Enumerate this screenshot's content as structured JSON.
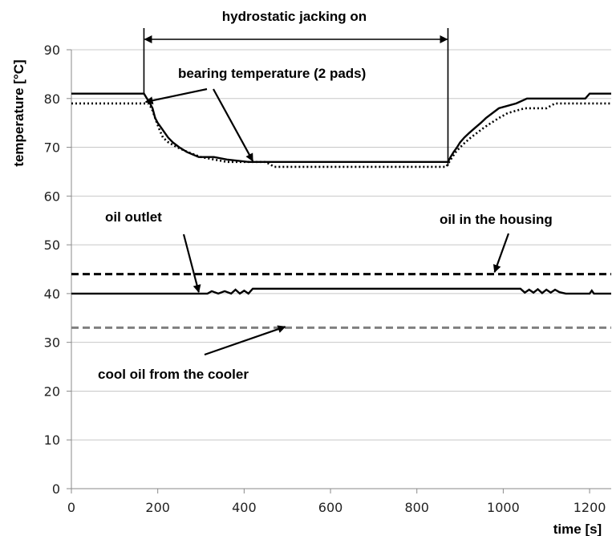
{
  "chart_data": {
    "type": "line",
    "title": "",
    "xlabel": "time [s]",
    "ylabel": "temperature [°C]",
    "xlim": [
      0,
      1250
    ],
    "ylim": [
      0,
      90
    ],
    "x_ticks": [
      0,
      200,
      400,
      600,
      800,
      1000,
      1200
    ],
    "y_ticks": [
      0,
      10,
      20,
      30,
      40,
      50,
      60,
      70,
      80,
      90
    ],
    "grid": "horizontal",
    "legend": "none",
    "series": [
      {
        "key": "bearing_pad_1",
        "style": "solid",
        "color": "#000000",
        "points": [
          [
            0,
            81
          ],
          [
            168,
            81
          ],
          [
            175,
            80
          ],
          [
            182,
            79
          ],
          [
            188,
            78
          ],
          [
            194,
            76
          ],
          [
            200,
            75
          ],
          [
            208,
            74
          ],
          [
            216,
            73
          ],
          [
            224,
            72
          ],
          [
            235,
            71
          ],
          [
            250,
            70
          ],
          [
            268,
            69
          ],
          [
            295,
            68
          ],
          [
            330,
            68
          ],
          [
            360,
            67.5
          ],
          [
            410,
            67
          ],
          [
            520,
            67
          ],
          [
            700,
            67
          ],
          [
            872,
            67
          ],
          [
            878,
            68
          ],
          [
            885,
            69
          ],
          [
            893,
            70
          ],
          [
            900,
            71
          ],
          [
            910,
            72
          ],
          [
            922,
            73
          ],
          [
            935,
            74
          ],
          [
            948,
            75
          ],
          [
            960,
            76
          ],
          [
            975,
            77
          ],
          [
            990,
            78
          ],
          [
            1030,
            79
          ],
          [
            1055,
            80
          ],
          [
            1190,
            80
          ],
          [
            1200,
            81
          ],
          [
            1250,
            81
          ]
        ]
      },
      {
        "key": "bearing_pad_2",
        "style": "dotted",
        "color": "#000000",
        "points": [
          [
            0,
            79
          ],
          [
            168,
            79
          ],
          [
            178,
            79
          ],
          [
            186,
            78
          ],
          [
            194,
            76
          ],
          [
            202,
            74
          ],
          [
            212,
            72
          ],
          [
            225,
            71
          ],
          [
            245,
            70
          ],
          [
            270,
            69
          ],
          [
            300,
            68
          ],
          [
            360,
            67
          ],
          [
            450,
            67
          ],
          [
            470,
            66
          ],
          [
            700,
            66
          ],
          [
            868,
            66
          ],
          [
            875,
            67
          ],
          [
            882,
            68
          ],
          [
            890,
            69
          ],
          [
            900,
            70
          ],
          [
            912,
            71
          ],
          [
            925,
            72
          ],
          [
            940,
            73
          ],
          [
            955,
            74
          ],
          [
            972,
            75
          ],
          [
            990,
            76
          ],
          [
            1010,
            77
          ],
          [
            1050,
            78
          ],
          [
            1100,
            78
          ],
          [
            1120,
            79
          ],
          [
            1250,
            79
          ]
        ]
      },
      {
        "key": "oil_outlet",
        "style": "solid",
        "color": "#000000",
        "points": [
          [
            0,
            40
          ],
          [
            300,
            40
          ],
          [
            315,
            40
          ],
          [
            325,
            40.5
          ],
          [
            340,
            40
          ],
          [
            355,
            40.5
          ],
          [
            370,
            40
          ],
          [
            380,
            40.8
          ],
          [
            390,
            40
          ],
          [
            400,
            40.6
          ],
          [
            410,
            40
          ],
          [
            420,
            41
          ],
          [
            1040,
            41
          ],
          [
            1050,
            40.2
          ],
          [
            1060,
            40.8
          ],
          [
            1070,
            40.2
          ],
          [
            1080,
            40.9
          ],
          [
            1090,
            40.1
          ],
          [
            1100,
            40.8
          ],
          [
            1110,
            40.2
          ],
          [
            1120,
            40.8
          ],
          [
            1130,
            40.3
          ],
          [
            1145,
            40
          ],
          [
            1170,
            40
          ],
          [
            1200,
            40
          ],
          [
            1205,
            40.6
          ],
          [
            1210,
            40
          ],
          [
            1250,
            40
          ]
        ]
      },
      {
        "key": "oil_in_housing",
        "style": "dashed",
        "color": "#000000",
        "points": [
          [
            0,
            44
          ],
          [
            1250,
            44
          ]
        ]
      },
      {
        "key": "cool_oil_from_cooler",
        "style": "dashed",
        "color": "#808080",
        "points": [
          [
            0,
            33
          ],
          [
            1250,
            33
          ]
        ]
      }
    ],
    "annotations": {
      "jacking": {
        "label": "hydrostatic jacking on",
        "x_start": 168,
        "x_end": 872
      },
      "bearing": {
        "label": "bearing temperature (2 pads)"
      },
      "outlet": {
        "label": "oil outlet"
      },
      "housing": {
        "label": "oil in the housing"
      },
      "cooler": {
        "label": "cool oil from the cooler"
      }
    }
  }
}
